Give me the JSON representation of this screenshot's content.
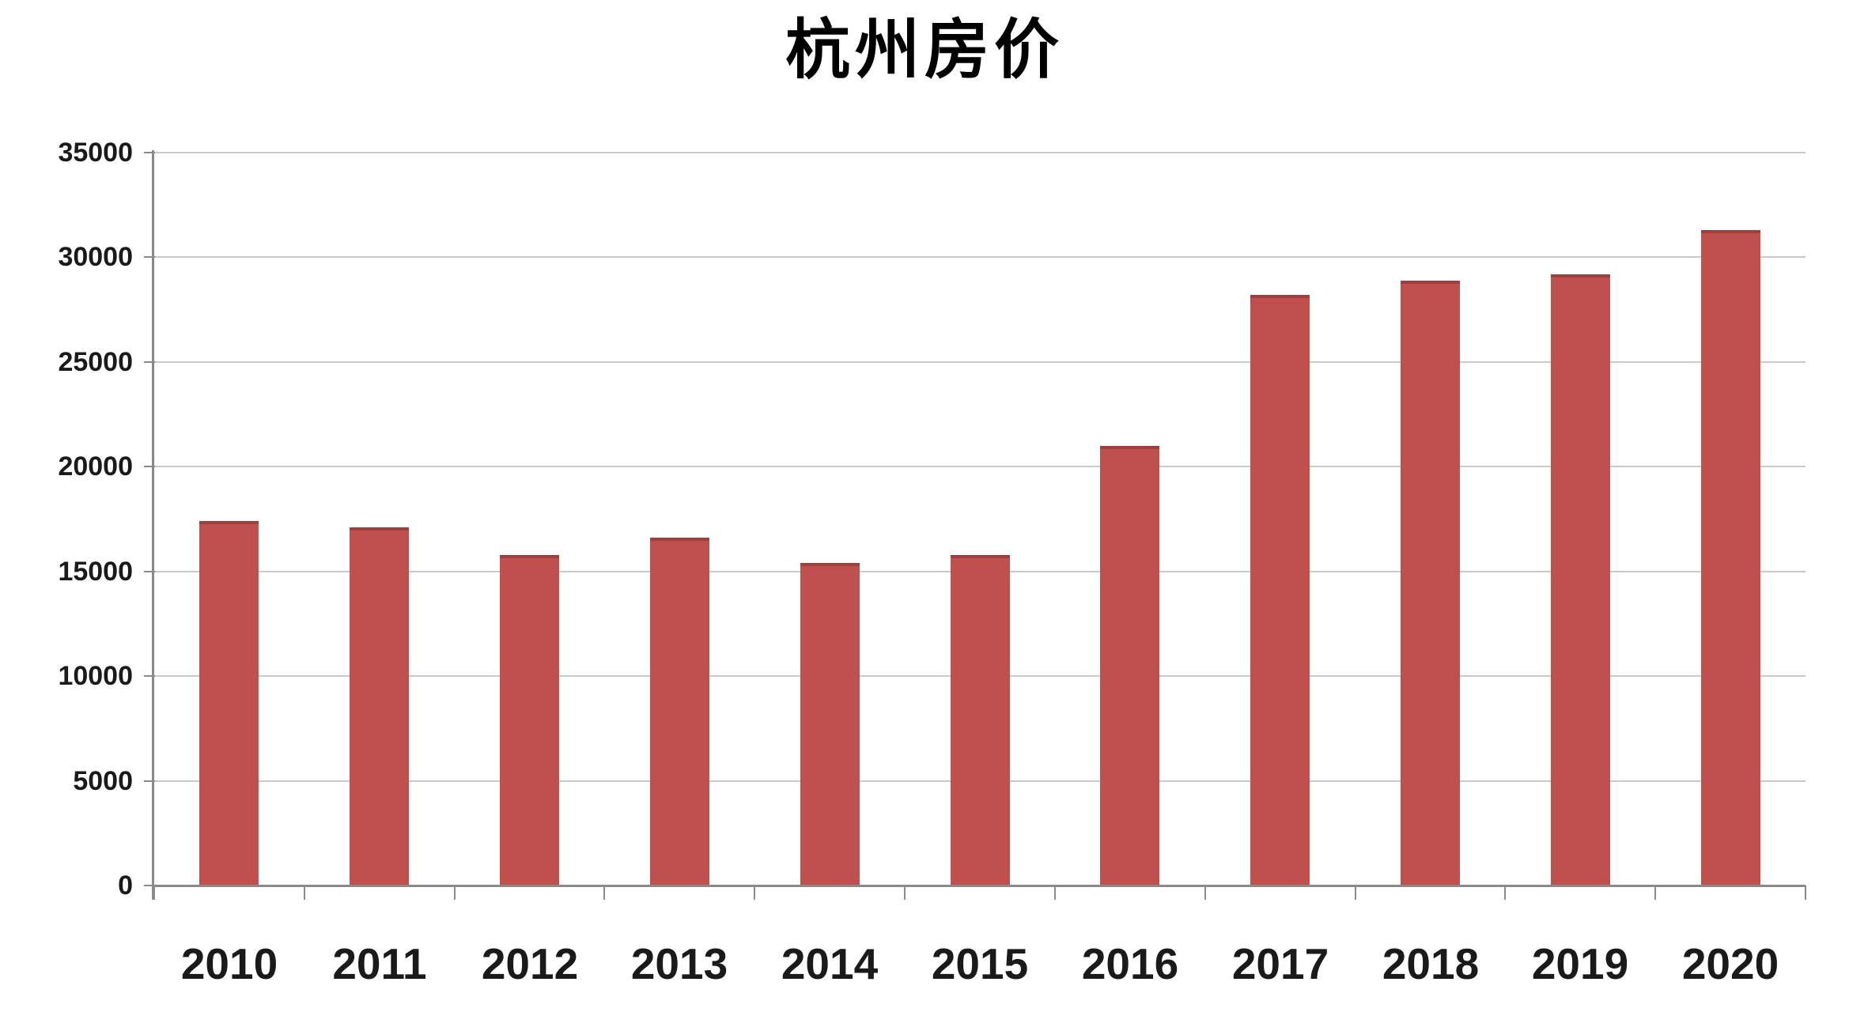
{
  "page": {
    "background": "#ffffff"
  },
  "chart_data": {
    "type": "bar",
    "title": "杭州房价",
    "categories": [
      "2010",
      "2011",
      "2012",
      "2013",
      "2014",
      "2015",
      "2016",
      "2017",
      "2018",
      "2019",
      "2020"
    ],
    "values": [
      17400,
      17100,
      15800,
      16600,
      15400,
      15800,
      21000,
      28200,
      28900,
      29200,
      31300
    ],
    "ylim": [
      0,
      35000
    ],
    "yticks": [
      0,
      5000,
      10000,
      15000,
      20000,
      25000,
      30000,
      35000
    ],
    "grid": true,
    "legend": false,
    "colors": {
      "bar": "#C0504D",
      "bar_top_edge": "#9E403D",
      "axis": "#8A8A8A",
      "gridline": "#C9C9C9",
      "tick": "#8A8A8A",
      "label": "#1A1A1A",
      "title": "#000000"
    }
  }
}
